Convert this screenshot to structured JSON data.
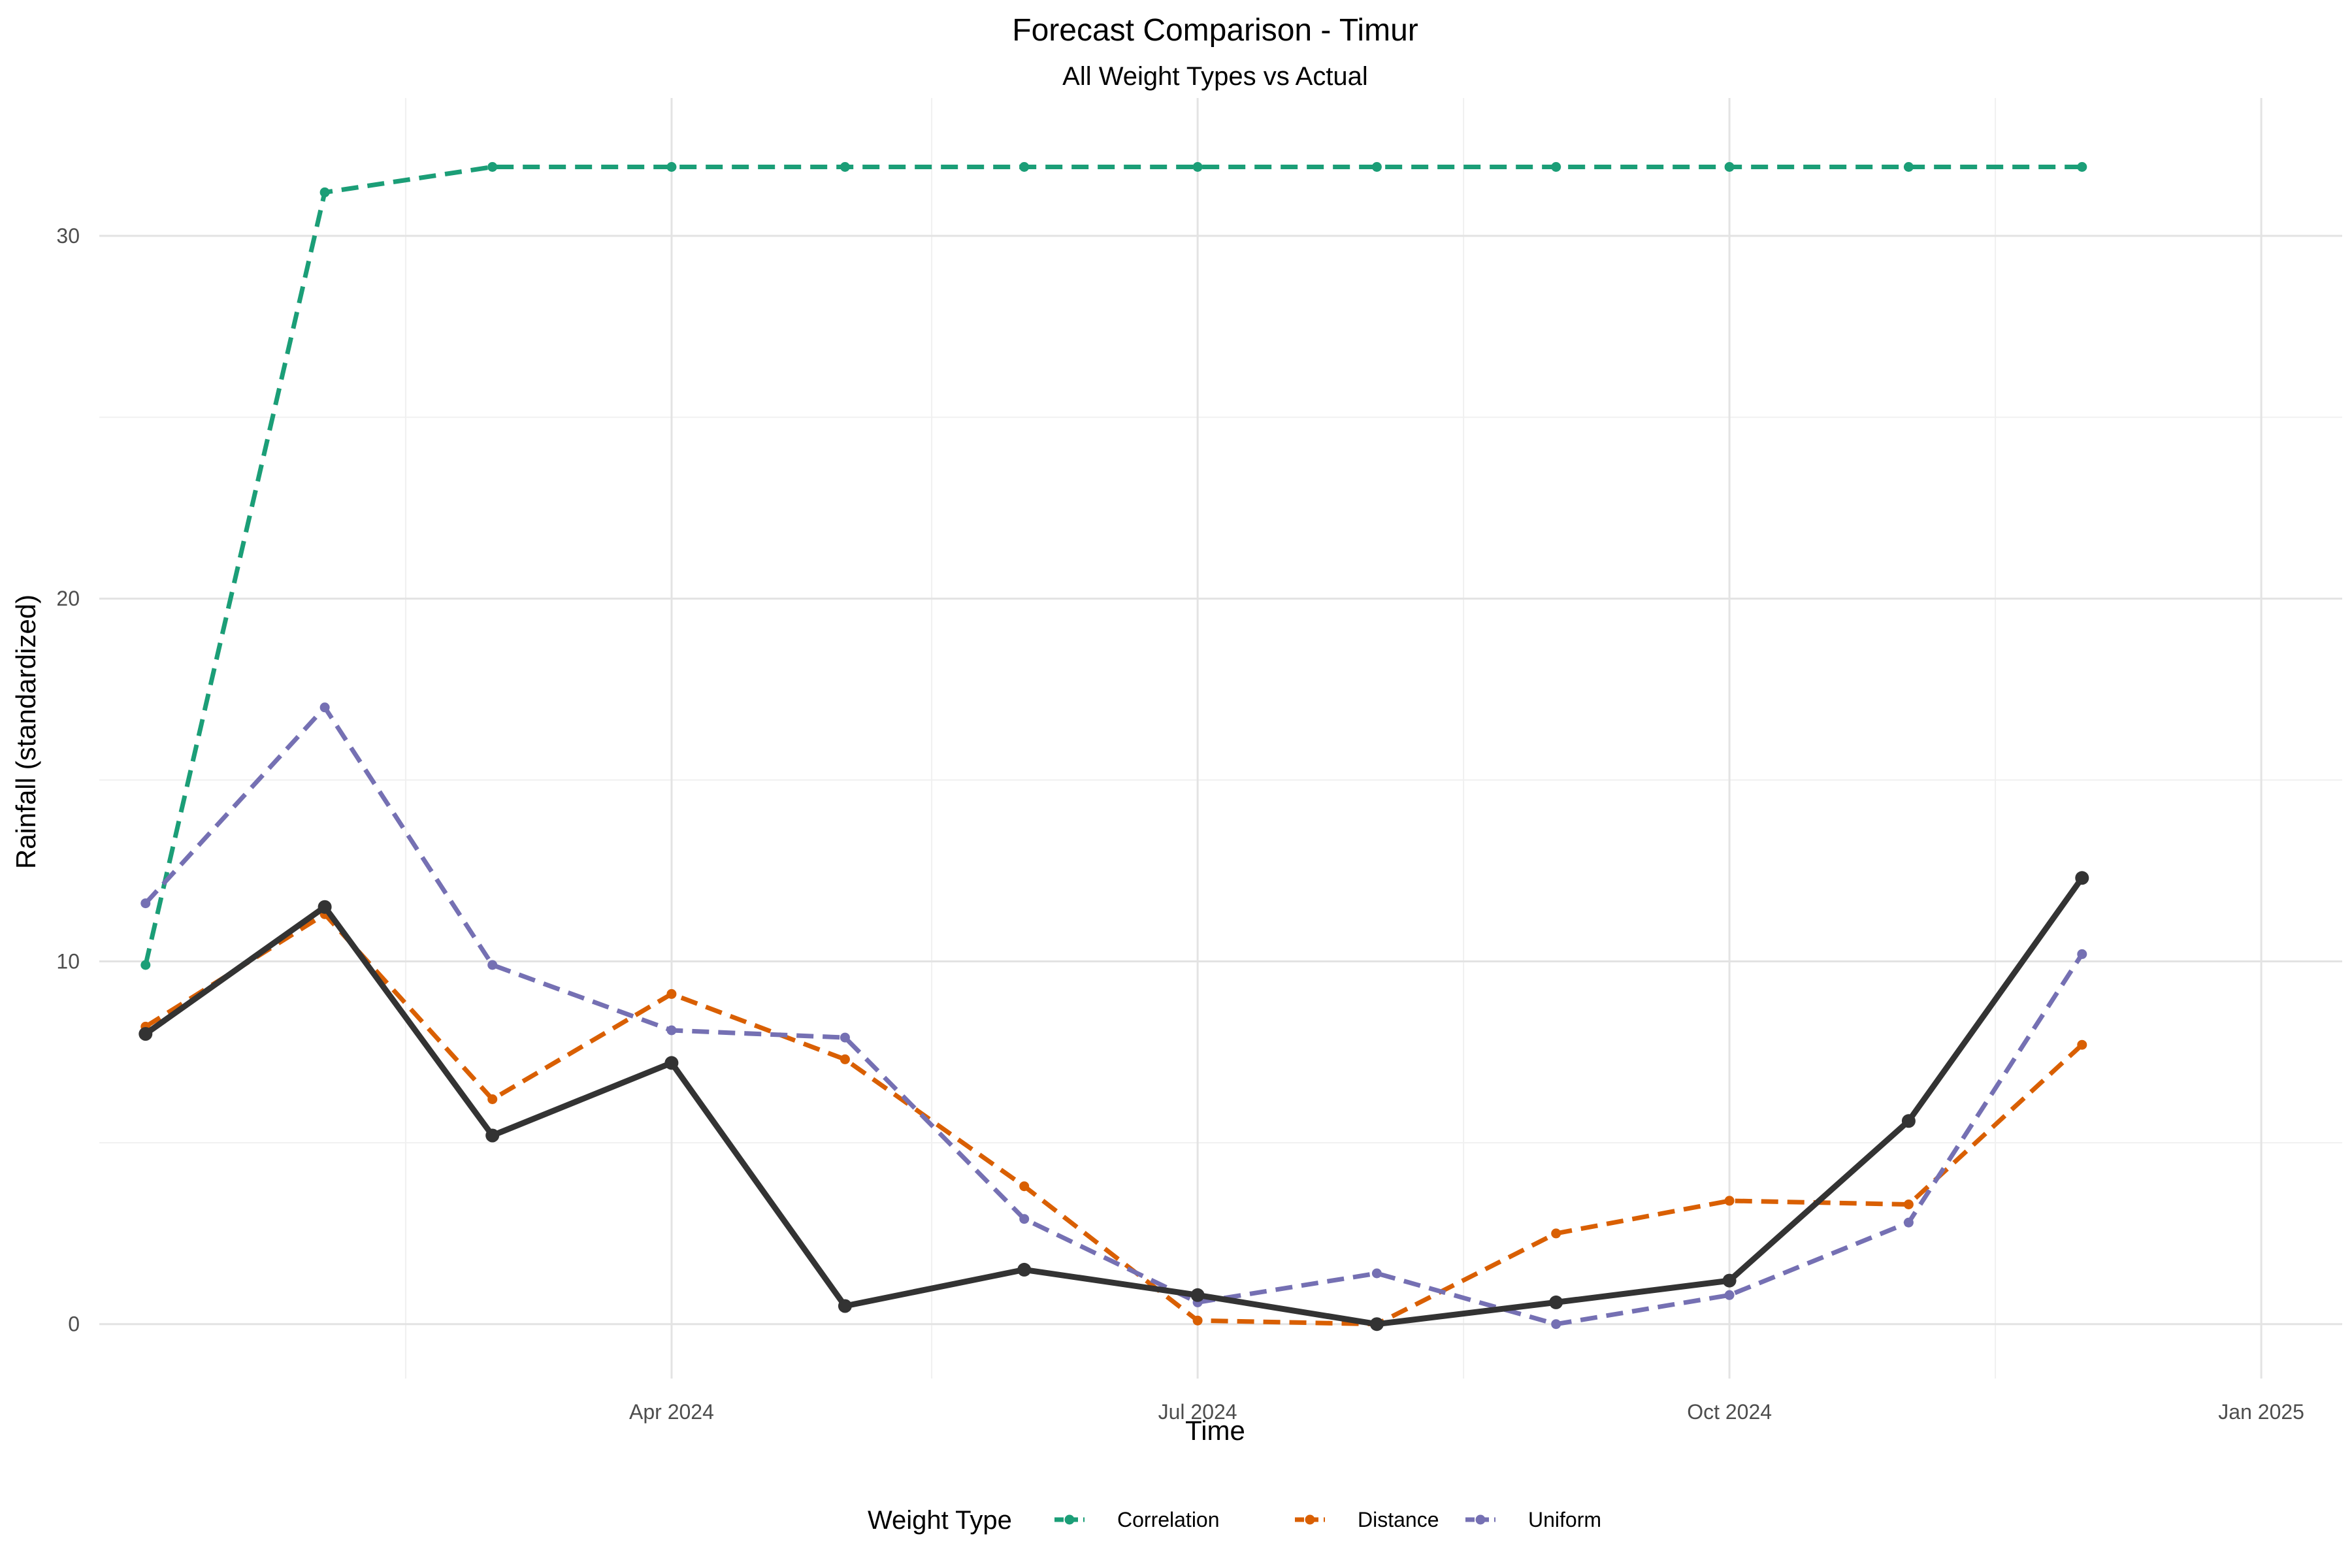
{
  "chart_data": {
    "type": "line",
    "title": "Forecast Comparison - Timur",
    "subtitle": "All Weight Types vs Actual",
    "xlabel": "Time",
    "ylabel": "Rainfall (standardized)",
    "x": [
      "2024-01-01",
      "2024-02-01",
      "2024-03-01",
      "2024-04-01",
      "2024-05-01",
      "2024-06-01",
      "2024-07-01",
      "2024-08-01",
      "2024-09-01",
      "2024-10-01",
      "2024-11-01",
      "2024-12-01",
      "2025-01-01"
    ],
    "xlim": [
      "2023-12-24",
      "2025-01-15"
    ],
    "x_ticks": [
      {
        "date": "2024-04-01",
        "label": "Apr 2024"
      },
      {
        "date": "2024-07-01",
        "label": "Jul 2024"
      },
      {
        "date": "2024-10-01",
        "label": "Oct 2024"
      },
      {
        "date": "2025-01-01",
        "label": "Jan 2025"
      }
    ],
    "x_minor_ticks": [
      "2024-02-15",
      "2024-05-16",
      "2024-08-16",
      "2024-11-16"
    ],
    "ylim": [
      -1.5,
      33.8
    ],
    "y_ticks": [
      0,
      10,
      20,
      30
    ],
    "y_minor_ticks": [
      5,
      15,
      25
    ],
    "grid": true,
    "legend": {
      "title": "Weight Type",
      "position": "bottom",
      "entries": [
        "Correlation",
        "Distance",
        "Uniform"
      ]
    },
    "actual": {
      "color": "#333333",
      "values": [
        8.0,
        11.5,
        5.2,
        7.2,
        0.5,
        1.5,
        0.8,
        0.0,
        0.6,
        1.2,
        5.6,
        12.3,
        null
      ]
    },
    "series": [
      {
        "name": "Correlation",
        "color": "#1b9e77",
        "values": [
          9.9,
          31.2,
          31.9,
          31.9,
          31.9,
          31.9,
          31.9,
          31.9,
          31.9,
          31.9,
          31.9,
          31.9,
          null
        ]
      },
      {
        "name": "Distance",
        "color": "#d95f02",
        "values": [
          8.2,
          11.3,
          6.2,
          9.1,
          7.3,
          3.8,
          0.1,
          0.0,
          2.5,
          3.4,
          3.3,
          7.7,
          null
        ]
      },
      {
        "name": "Uniform",
        "color": "#7570b3",
        "values": [
          11.6,
          17.0,
          9.9,
          8.1,
          7.9,
          2.9,
          0.6,
          1.4,
          0.0,
          0.8,
          2.8,
          10.2,
          null
        ]
      }
    ]
  }
}
